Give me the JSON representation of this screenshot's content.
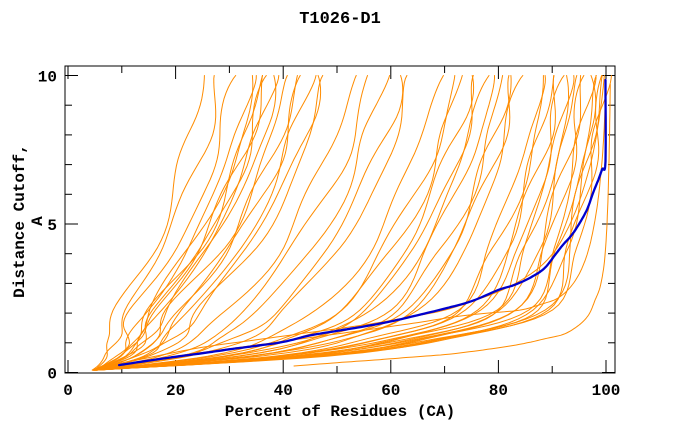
{
  "page": {
    "background": "#ffffff"
  },
  "chart_data": {
    "type": "line",
    "title": "T1026-D1",
    "xlabel": "Percent of Residues (CA)",
    "ylabel": "Distance Cutoff, A",
    "xlim": [
      0,
      102
    ],
    "ylim": [
      0,
      10.3
    ],
    "x_ticks_major": [
      0,
      20,
      40,
      60,
      80,
      100
    ],
    "x_ticks_minor": [
      10,
      30,
      50,
      70,
      90
    ],
    "y_ticks_major": [
      0,
      5,
      10
    ],
    "y_ticks_minor": [
      1,
      2,
      3,
      4,
      6,
      7,
      8,
      9
    ],
    "grid": false,
    "legend": "none",
    "axis_color": "#000000",
    "series_color": "#ff8c00",
    "highlight_color": "#0000cd",
    "highlight_series": {
      "name": "highlighted-model",
      "points": [
        [
          9.5,
          0.25
        ],
        [
          15,
          0.4
        ],
        [
          20,
          0.53
        ],
        [
          25,
          0.65
        ],
        [
          30,
          0.78
        ],
        [
          35,
          0.9
        ],
        [
          40,
          1.03
        ],
        [
          45,
          1.25
        ],
        [
          50,
          1.4
        ],
        [
          55,
          1.55
        ],
        [
          60,
          1.72
        ],
        [
          65,
          1.93
        ],
        [
          70,
          2.15
        ],
        [
          75,
          2.4
        ],
        [
          80,
          2.78
        ],
        [
          83,
          2.95
        ],
        [
          86,
          3.2
        ],
        [
          88.5,
          3.5
        ],
        [
          90.5,
          3.95
        ],
        [
          92,
          4.3
        ],
        [
          93.5,
          4.6
        ],
        [
          95,
          5.0
        ],
        [
          96.5,
          5.5
        ],
        [
          97.6,
          6.05
        ],
        [
          98.6,
          6.5
        ],
        [
          99.3,
          6.85
        ],
        [
          99.9,
          7.1
        ],
        [
          99.9,
          9.85
        ]
      ]
    },
    "extra_series": [
      {
        "name": "outlier-model-1",
        "points": [
          [
            42,
            0.22
          ],
          [
            50,
            0.33
          ],
          [
            57,
            0.42
          ],
          [
            64,
            0.52
          ],
          [
            71,
            0.62
          ],
          [
            78,
            0.78
          ],
          [
            84,
            0.95
          ],
          [
            89,
            1.15
          ],
          [
            92.3,
            1.3
          ],
          [
            95,
            1.6
          ],
          [
            96.8,
            1.95
          ],
          [
            98,
            2.45
          ],
          [
            99,
            2.95
          ],
          [
            99.8,
            3.9
          ],
          [
            100.3,
            5.5
          ],
          [
            100.6,
            7.5
          ],
          [
            100.8,
            9.7
          ]
        ]
      },
      {
        "name": "outlier-model-2",
        "points": [
          [
            5,
            0.1
          ],
          [
            12,
            0.3
          ],
          [
            20,
            0.55
          ],
          [
            30,
            0.8
          ],
          [
            40,
            1.05
          ],
          [
            50,
            1.3
          ],
          [
            58,
            1.5
          ],
          [
            65,
            1.68
          ],
          [
            72,
            1.88
          ],
          [
            78,
            2.0
          ],
          [
            84,
            2.1
          ],
          [
            88,
            2.3
          ],
          [
            91,
            2.5
          ],
          [
            93.5,
            2.9
          ],
          [
            95.5,
            3.5
          ],
          [
            97,
            4.3
          ],
          [
            98.2,
            5.4
          ],
          [
            99,
            6.6
          ],
          [
            99.6,
            8.0
          ],
          [
            100,
            9.8
          ]
        ]
      },
      {
        "name": "outlier-model-3",
        "points": [
          [
            5,
            0.12
          ],
          [
            15,
            0.5
          ],
          [
            25,
            0.85
          ],
          [
            35,
            1.1
          ],
          [
            45,
            1.35
          ],
          [
            55,
            1.6
          ],
          [
            63,
            1.85
          ],
          [
            70,
            2.1
          ],
          [
            76,
            2.45
          ],
          [
            81,
            2.8
          ],
          [
            85,
            3.2
          ],
          [
            88,
            3.6
          ],
          [
            90.5,
            4.1
          ],
          [
            92.5,
            4.7
          ],
          [
            94.5,
            5.5
          ],
          [
            96,
            6.3
          ],
          [
            97.5,
            7.3
          ],
          [
            98.6,
            8.4
          ],
          [
            99.3,
            9.3
          ],
          [
            99.7,
            10
          ]
        ]
      }
    ],
    "model_series": {
      "name": "predicted-models",
      "encoding": "[x_start_pct, x_pct_at_2A, x_pct_at_10A] per curve",
      "curves": [
        [
          5,
          8.8,
          25
        ],
        [
          4.5,
          10.4,
          28
        ],
        [
          5.5,
          12.2,
          31
        ],
        [
          5,
          14.1,
          34
        ],
        [
          4.8,
          14.8,
          35
        ],
        [
          5.2,
          15.5,
          36
        ],
        [
          4.6,
          15.9,
          36.5
        ],
        [
          5.4,
          16.2,
          37
        ],
        [
          5,
          16.9,
          38
        ],
        [
          4.7,
          17.7,
          39
        ],
        [
          5.3,
          19.2,
          41
        ],
        [
          5,
          20.3,
          42.5
        ],
        [
          4.9,
          21.1,
          43.5
        ],
        [
          5.1,
          22.4,
          45
        ],
        [
          4.6,
          24,
          47
        ],
        [
          5.2,
          24.9,
          48
        ],
        [
          4.8,
          29.4,
          53
        ],
        [
          5.3,
          32.3,
          56
        ],
        [
          4.9,
          35.4,
          59
        ],
        [
          5.1,
          38.5,
          62
        ],
        [
          4.7,
          40.7,
          64
        ],
        [
          5.2,
          46.4,
          69
        ],
        [
          4.8,
          50,
          72
        ],
        [
          5.4,
          51.2,
          73
        ],
        [
          5,
          53.8,
          75
        ],
        [
          4.6,
          55.7,
          76.5
        ],
        [
          5.3,
          57,
          77.5
        ],
        [
          4.9,
          58.9,
          79
        ],
        [
          5.1,
          61.6,
          81
        ],
        [
          4.7,
          63,
          82
        ],
        [
          5.2,
          64.3,
          83
        ],
        [
          4.9,
          65.8,
          84
        ],
        [
          5,
          71.5,
          88
        ],
        [
          5.3,
          72.9,
          89
        ],
        [
          4.6,
          74.4,
          90
        ],
        [
          5.1,
          75.9,
          91
        ],
        [
          4.8,
          77.4,
          92
        ],
        [
          5.2,
          78.9,
          93
        ],
        [
          4.9,
          79.7,
          93.5
        ],
        [
          5.1,
          81.2,
          94.5
        ],
        [
          4.7,
          82.8,
          95.5
        ],
        [
          5.3,
          83.6,
          96
        ],
        [
          4.8,
          85.2,
          97
        ],
        [
          5,
          86.8,
          98
        ],
        [
          5.2,
          87.6,
          98.5
        ],
        [
          4.6,
          88.4,
          99
        ],
        [
          5.1,
          89.2,
          99.5
        ],
        [
          4.9,
          90,
          100
        ]
      ]
    }
  }
}
